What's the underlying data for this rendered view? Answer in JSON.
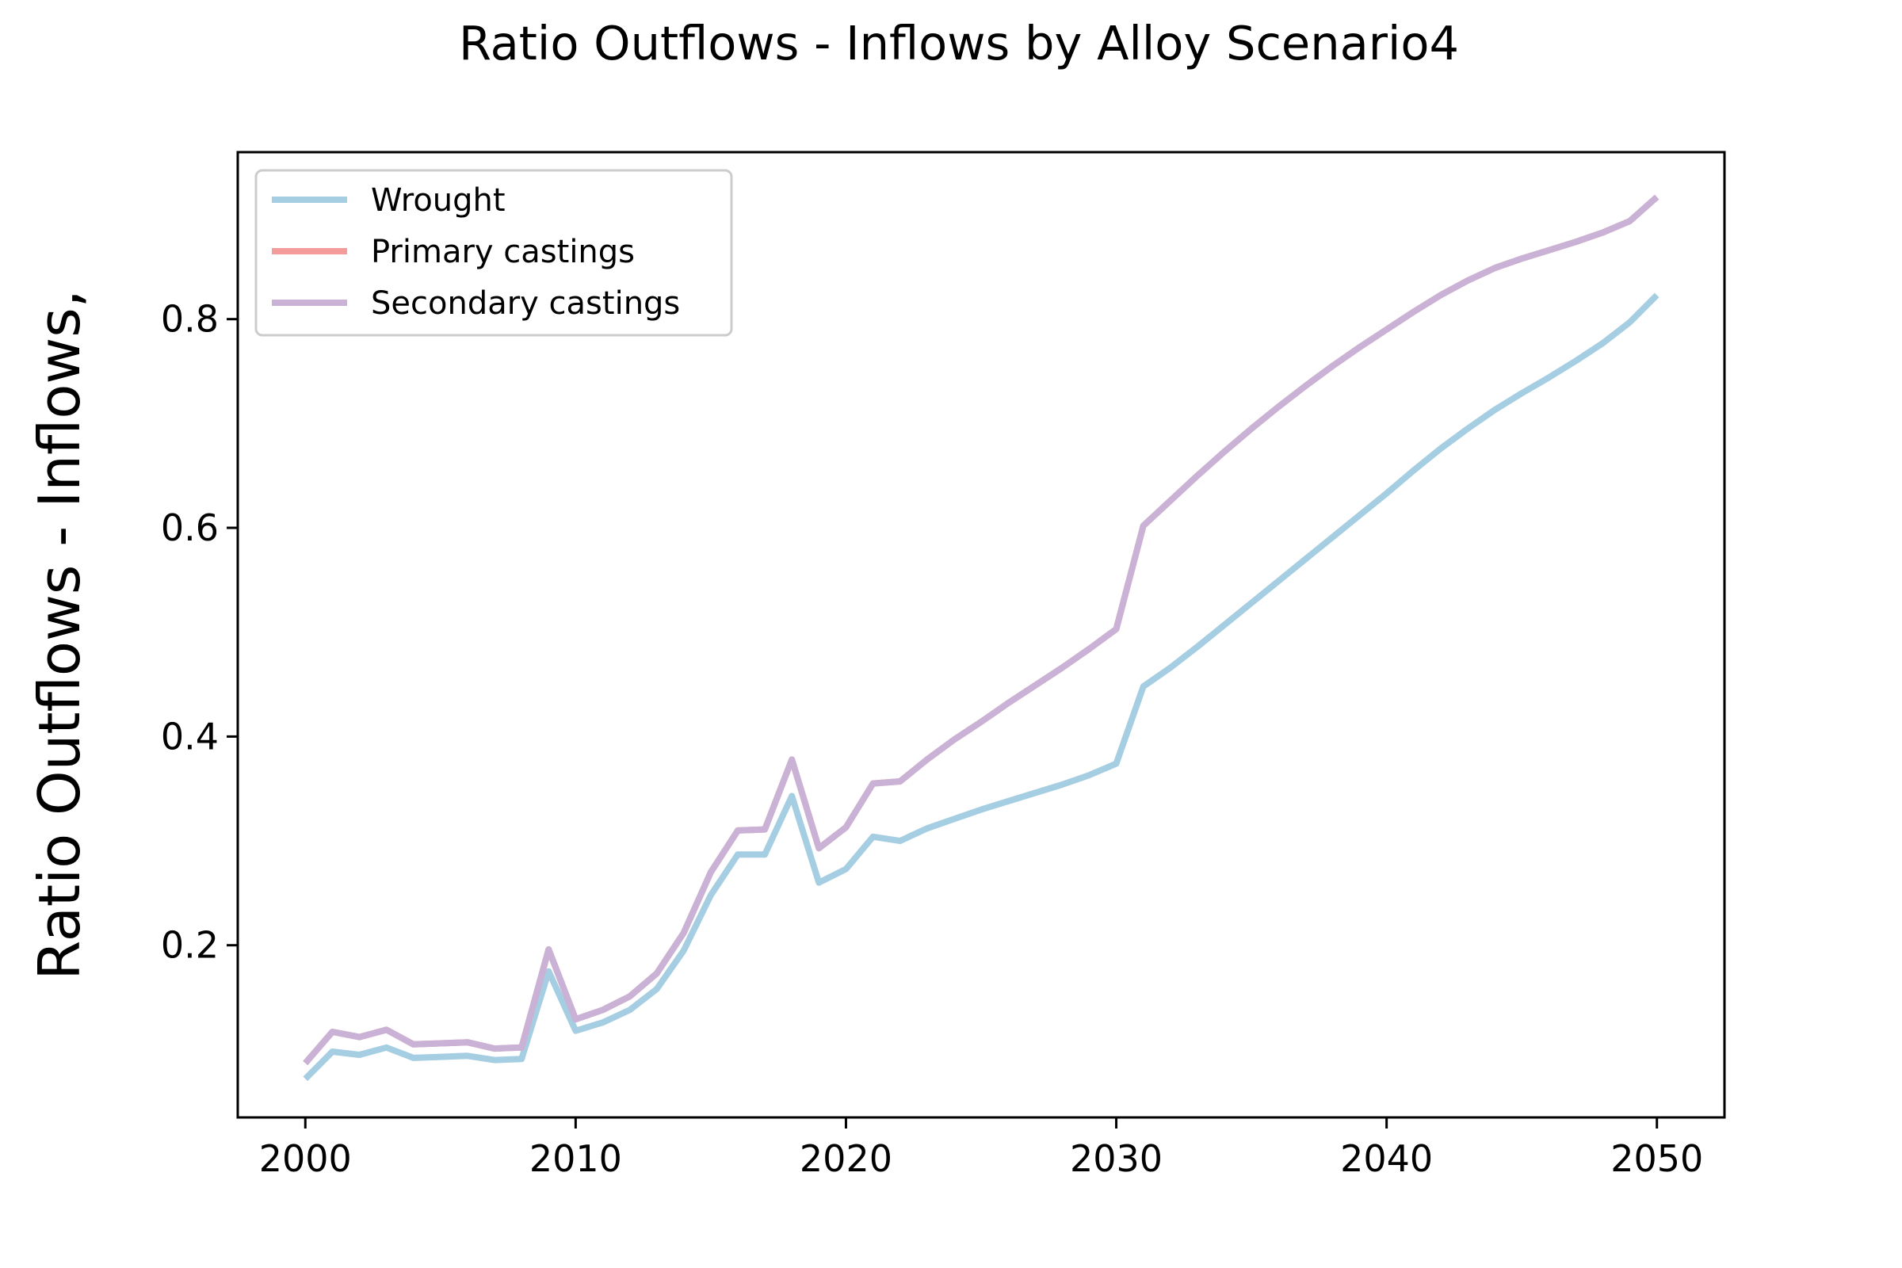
{
  "chart_data": {
    "type": "line",
    "title": "Ratio Outflows - Inflows by Alloy Scenario4",
    "xlabel": "",
    "ylabel": "Ratio Outflows - Inflows,",
    "xlim": [
      1997.5,
      2052.5
    ],
    "ylim": [
      0.035,
      0.96
    ],
    "xticks": [
      2000,
      2010,
      2020,
      2030,
      2040,
      2050
    ],
    "xtick_labels": [
      "2000",
      "2010",
      "2020",
      "2030",
      "2040",
      "2050"
    ],
    "yticks": [
      0.2,
      0.4,
      0.6,
      0.8
    ],
    "ytick_labels": [
      "0.2",
      "0.4",
      "0.6",
      "0.8"
    ],
    "grid": false,
    "legend_position": "upper-left",
    "x": [
      2000,
      2001,
      2002,
      2003,
      2004,
      2005,
      2006,
      2007,
      2008,
      2009,
      2010,
      2011,
      2012,
      2013,
      2014,
      2015,
      2016,
      2017,
      2018,
      2019,
      2020,
      2021,
      2022,
      2023,
      2024,
      2025,
      2026,
      2027,
      2028,
      2029,
      2030,
      2031,
      2032,
      2033,
      2034,
      2035,
      2036,
      2037,
      2038,
      2039,
      2040,
      2041,
      2042,
      2043,
      2044,
      2045,
      2046,
      2047,
      2048,
      2049,
      2050
    ],
    "series": [
      {
        "name": "Wrought",
        "color": "#a6cee3",
        "values": [
          0.072,
          0.098,
          0.095,
          0.102,
          0.092,
          0.093,
          0.094,
          0.09,
          0.091,
          0.175,
          0.118,
          0.126,
          0.138,
          0.158,
          0.195,
          0.248,
          0.287,
          0.287,
          0.343,
          0.26,
          0.273,
          0.304,
          0.3,
          0.312,
          0.321,
          0.33,
          0.338,
          0.346,
          0.354,
          0.363,
          0.374,
          0.448,
          0.466,
          0.486,
          0.507,
          0.528,
          0.549,
          0.57,
          0.591,
          0.612,
          0.633,
          0.655,
          0.676,
          0.695,
          0.713,
          0.729,
          0.744,
          0.76,
          0.777,
          0.797,
          0.823
        ]
      },
      {
        "name": "Primary castings",
        "color": "#f49c9c",
        "values": [
          0.087,
          0.117,
          0.112,
          0.119,
          0.105,
          0.106,
          0.107,
          0.101,
          0.102,
          0.196,
          0.129,
          0.138,
          0.151,
          0.173,
          0.212,
          0.27,
          0.31,
          0.311,
          0.378,
          0.293,
          0.313,
          0.355,
          0.357,
          0.378,
          0.397,
          0.414,
          0.432,
          0.449,
          0.466,
          0.484,
          0.503,
          0.602,
          0.626,
          0.65,
          0.673,
          0.695,
          0.716,
          0.736,
          0.755,
          0.773,
          0.79,
          0.807,
          0.823,
          0.837,
          0.849,
          0.858,
          0.866,
          0.874,
          0.883,
          0.894,
          0.917
        ]
      },
      {
        "name": "Secondary castings",
        "color": "#cab2d6",
        "values": [
          0.087,
          0.117,
          0.112,
          0.119,
          0.105,
          0.106,
          0.107,
          0.101,
          0.102,
          0.196,
          0.129,
          0.138,
          0.151,
          0.173,
          0.212,
          0.27,
          0.31,
          0.311,
          0.378,
          0.293,
          0.313,
          0.355,
          0.357,
          0.378,
          0.397,
          0.414,
          0.432,
          0.449,
          0.466,
          0.484,
          0.503,
          0.602,
          0.626,
          0.65,
          0.673,
          0.695,
          0.716,
          0.736,
          0.755,
          0.773,
          0.79,
          0.807,
          0.823,
          0.837,
          0.849,
          0.858,
          0.866,
          0.874,
          0.883,
          0.894,
          0.917
        ]
      }
    ]
  }
}
